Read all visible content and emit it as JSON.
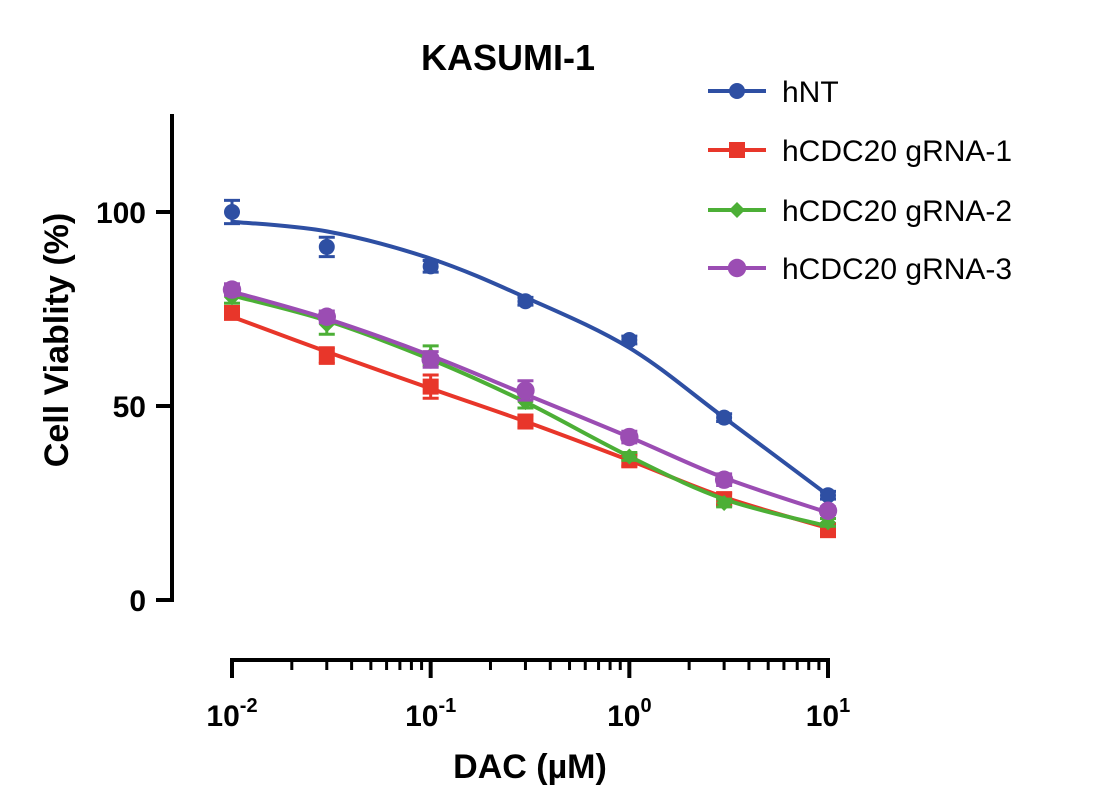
{
  "chart_data": {
    "type": "line",
    "title": "KASUMI-1",
    "xlabel": "DAC (µM)",
    "ylabel": "Cell Viablity (%)",
    "x_scale": "log",
    "xlim": [
      0.01,
      10
    ],
    "ylim": [
      0,
      125
    ],
    "x_ticks": [
      {
        "base": "10",
        "exp": "-2",
        "value": 0.01
      },
      {
        "base": "10",
        "exp": "-1",
        "value": 0.1
      },
      {
        "base": "10",
        "exp": "0",
        "value": 1
      },
      {
        "base": "10",
        "exp": "1",
        "value": 10
      }
    ],
    "y_ticks": [
      {
        "label": "0",
        "value": 0
      },
      {
        "label": "50",
        "value": 50
      },
      {
        "label": "100",
        "value": 100
      }
    ],
    "grid": false,
    "legend_position": "top-right",
    "x": [
      0.01,
      0.03,
      0.1,
      0.3,
      1,
      3,
      10
    ],
    "series": [
      {
        "name": "hNT",
        "color": "#2e4fa3",
        "marker": "circle",
        "values": [
          100,
          91,
          86,
          77,
          67,
          47,
          27
        ],
        "errors": [
          3,
          2.5,
          1.5,
          1,
          1,
          1,
          1
        ],
        "fit": [
          97.5,
          95,
          88,
          78,
          65,
          47,
          27
        ]
      },
      {
        "name": "hCDC20 gRNA-1",
        "color": "#e8362a",
        "marker": "square",
        "values": [
          74,
          63,
          55,
          46,
          36,
          26,
          18
        ],
        "errors": [
          1.5,
          2,
          3,
          1.5,
          1.5,
          1.5,
          1
        ],
        "fit": [
          73,
          64,
          54.5,
          46,
          36,
          26.5,
          18.5
        ]
      },
      {
        "name": "hCDC20 gRNA-2",
        "color": "#4caf36",
        "marker": "diamond",
        "values": [
          78,
          71,
          63,
          51,
          37,
          25,
          20
        ],
        "errors": [
          1.5,
          2.5,
          2.5,
          1.5,
          1,
          1,
          1
        ],
        "fit": [
          78.5,
          72,
          62,
          51,
          37,
          26,
          19
        ]
      },
      {
        "name": "hCDC20 gRNA-3",
        "color": "#9b4db3",
        "marker": "circle",
        "values": [
          80,
          73,
          62,
          54,
          42,
          31,
          23
        ],
        "errors": [
          1.5,
          1.5,
          2,
          2.5,
          1.5,
          1.5,
          1
        ],
        "fit": [
          79.5,
          72.5,
          63,
          53,
          42,
          31.5,
          22.5
        ]
      }
    ]
  }
}
